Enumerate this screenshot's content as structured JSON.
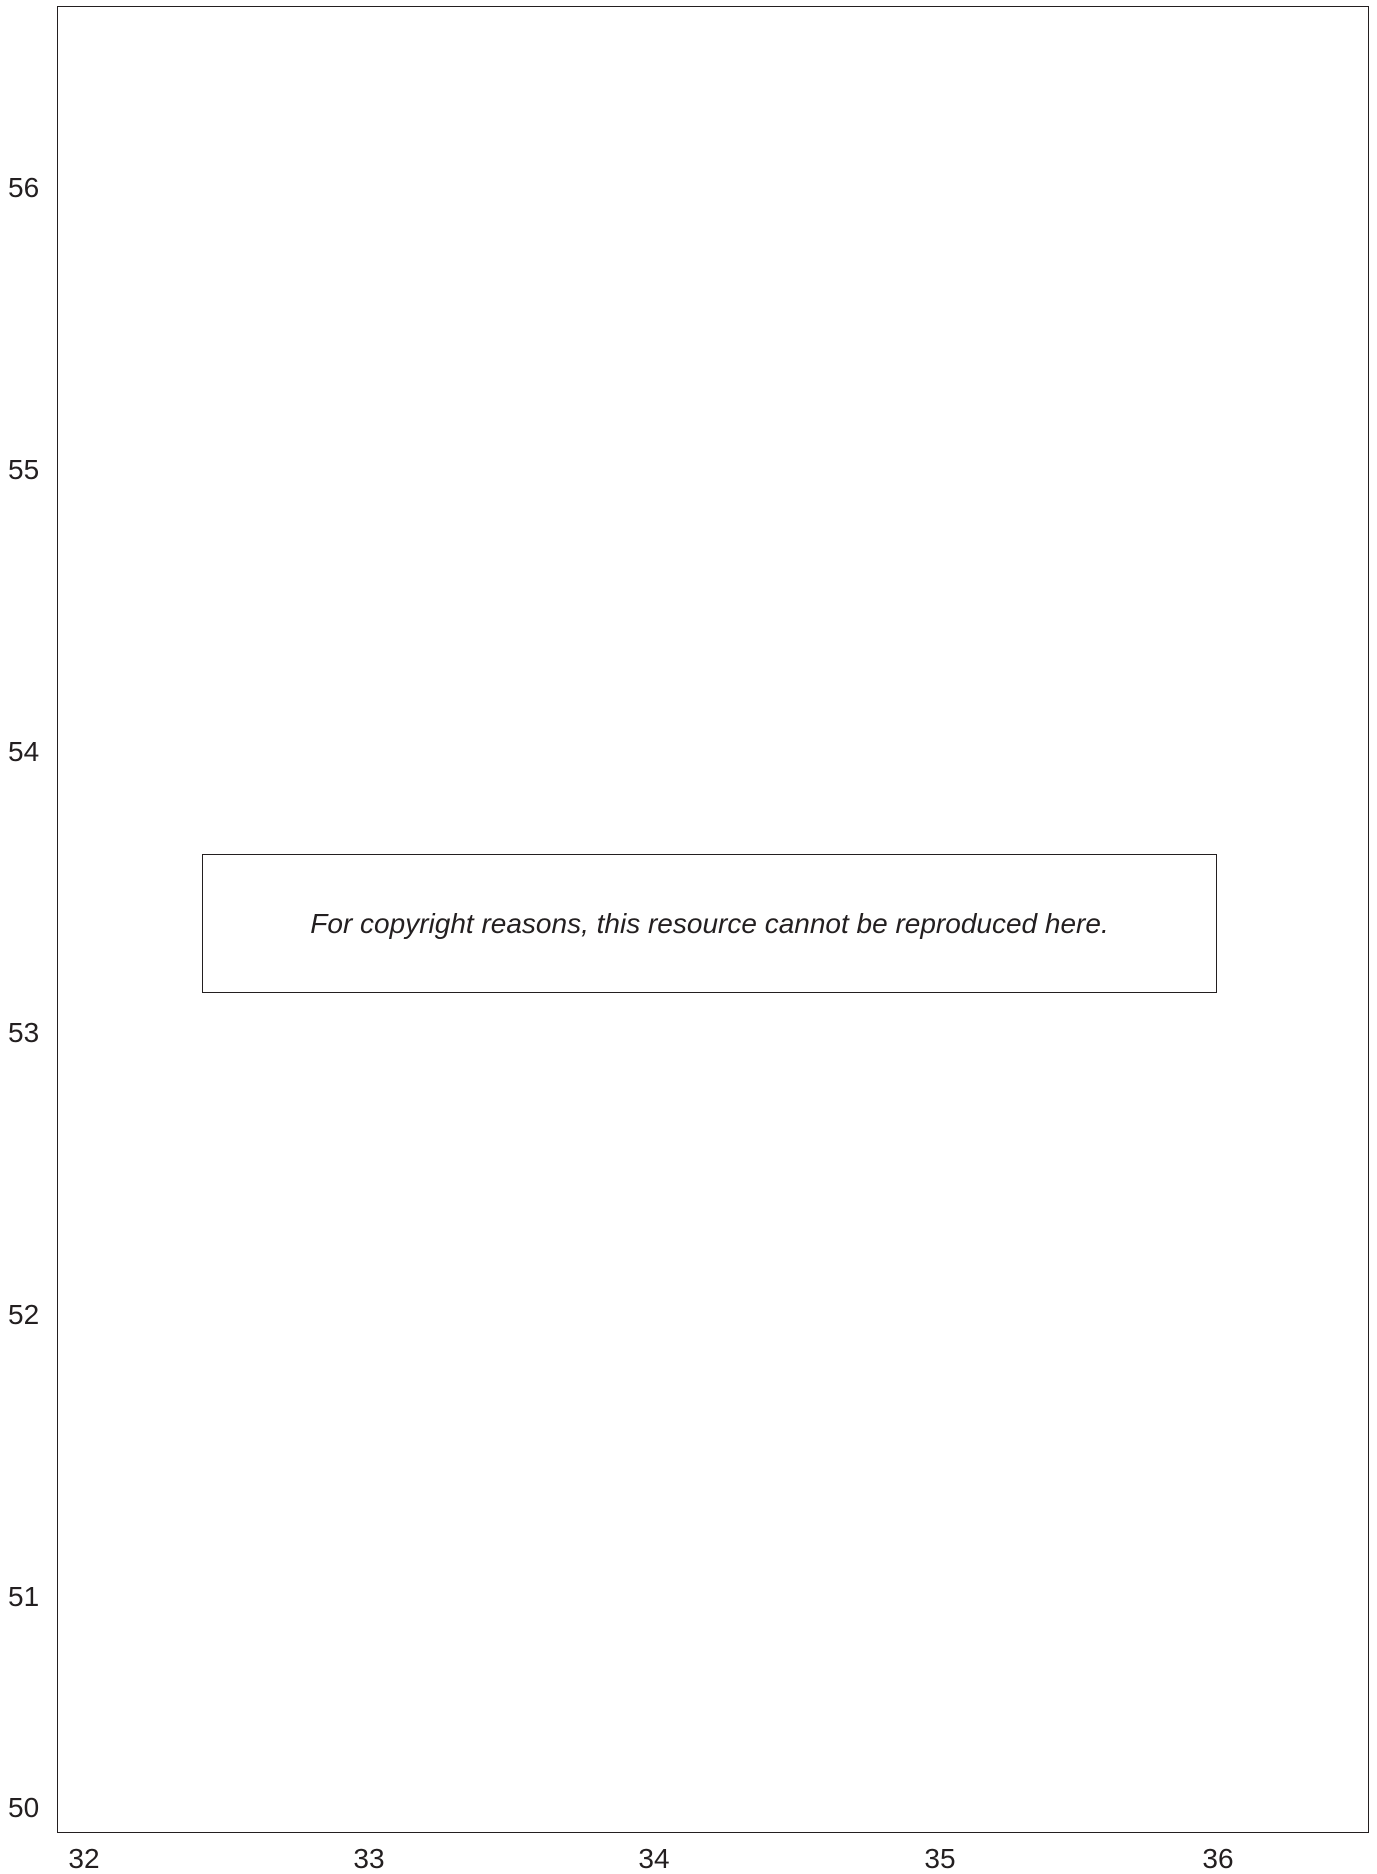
{
  "axes": {
    "y_ticks": [
      "56",
      "55",
      "54",
      "53",
      "52",
      "51",
      "50"
    ],
    "x_ticks": [
      "32",
      "33",
      "34",
      "35",
      "36"
    ],
    "y_range": [
      50,
      56
    ],
    "x_range": [
      32,
      36
    ]
  },
  "notice": {
    "text": "For copyright reasons, this resource cannot be reproduced here."
  },
  "colors": {
    "line": "#231f20",
    "background": "#ffffff"
  }
}
